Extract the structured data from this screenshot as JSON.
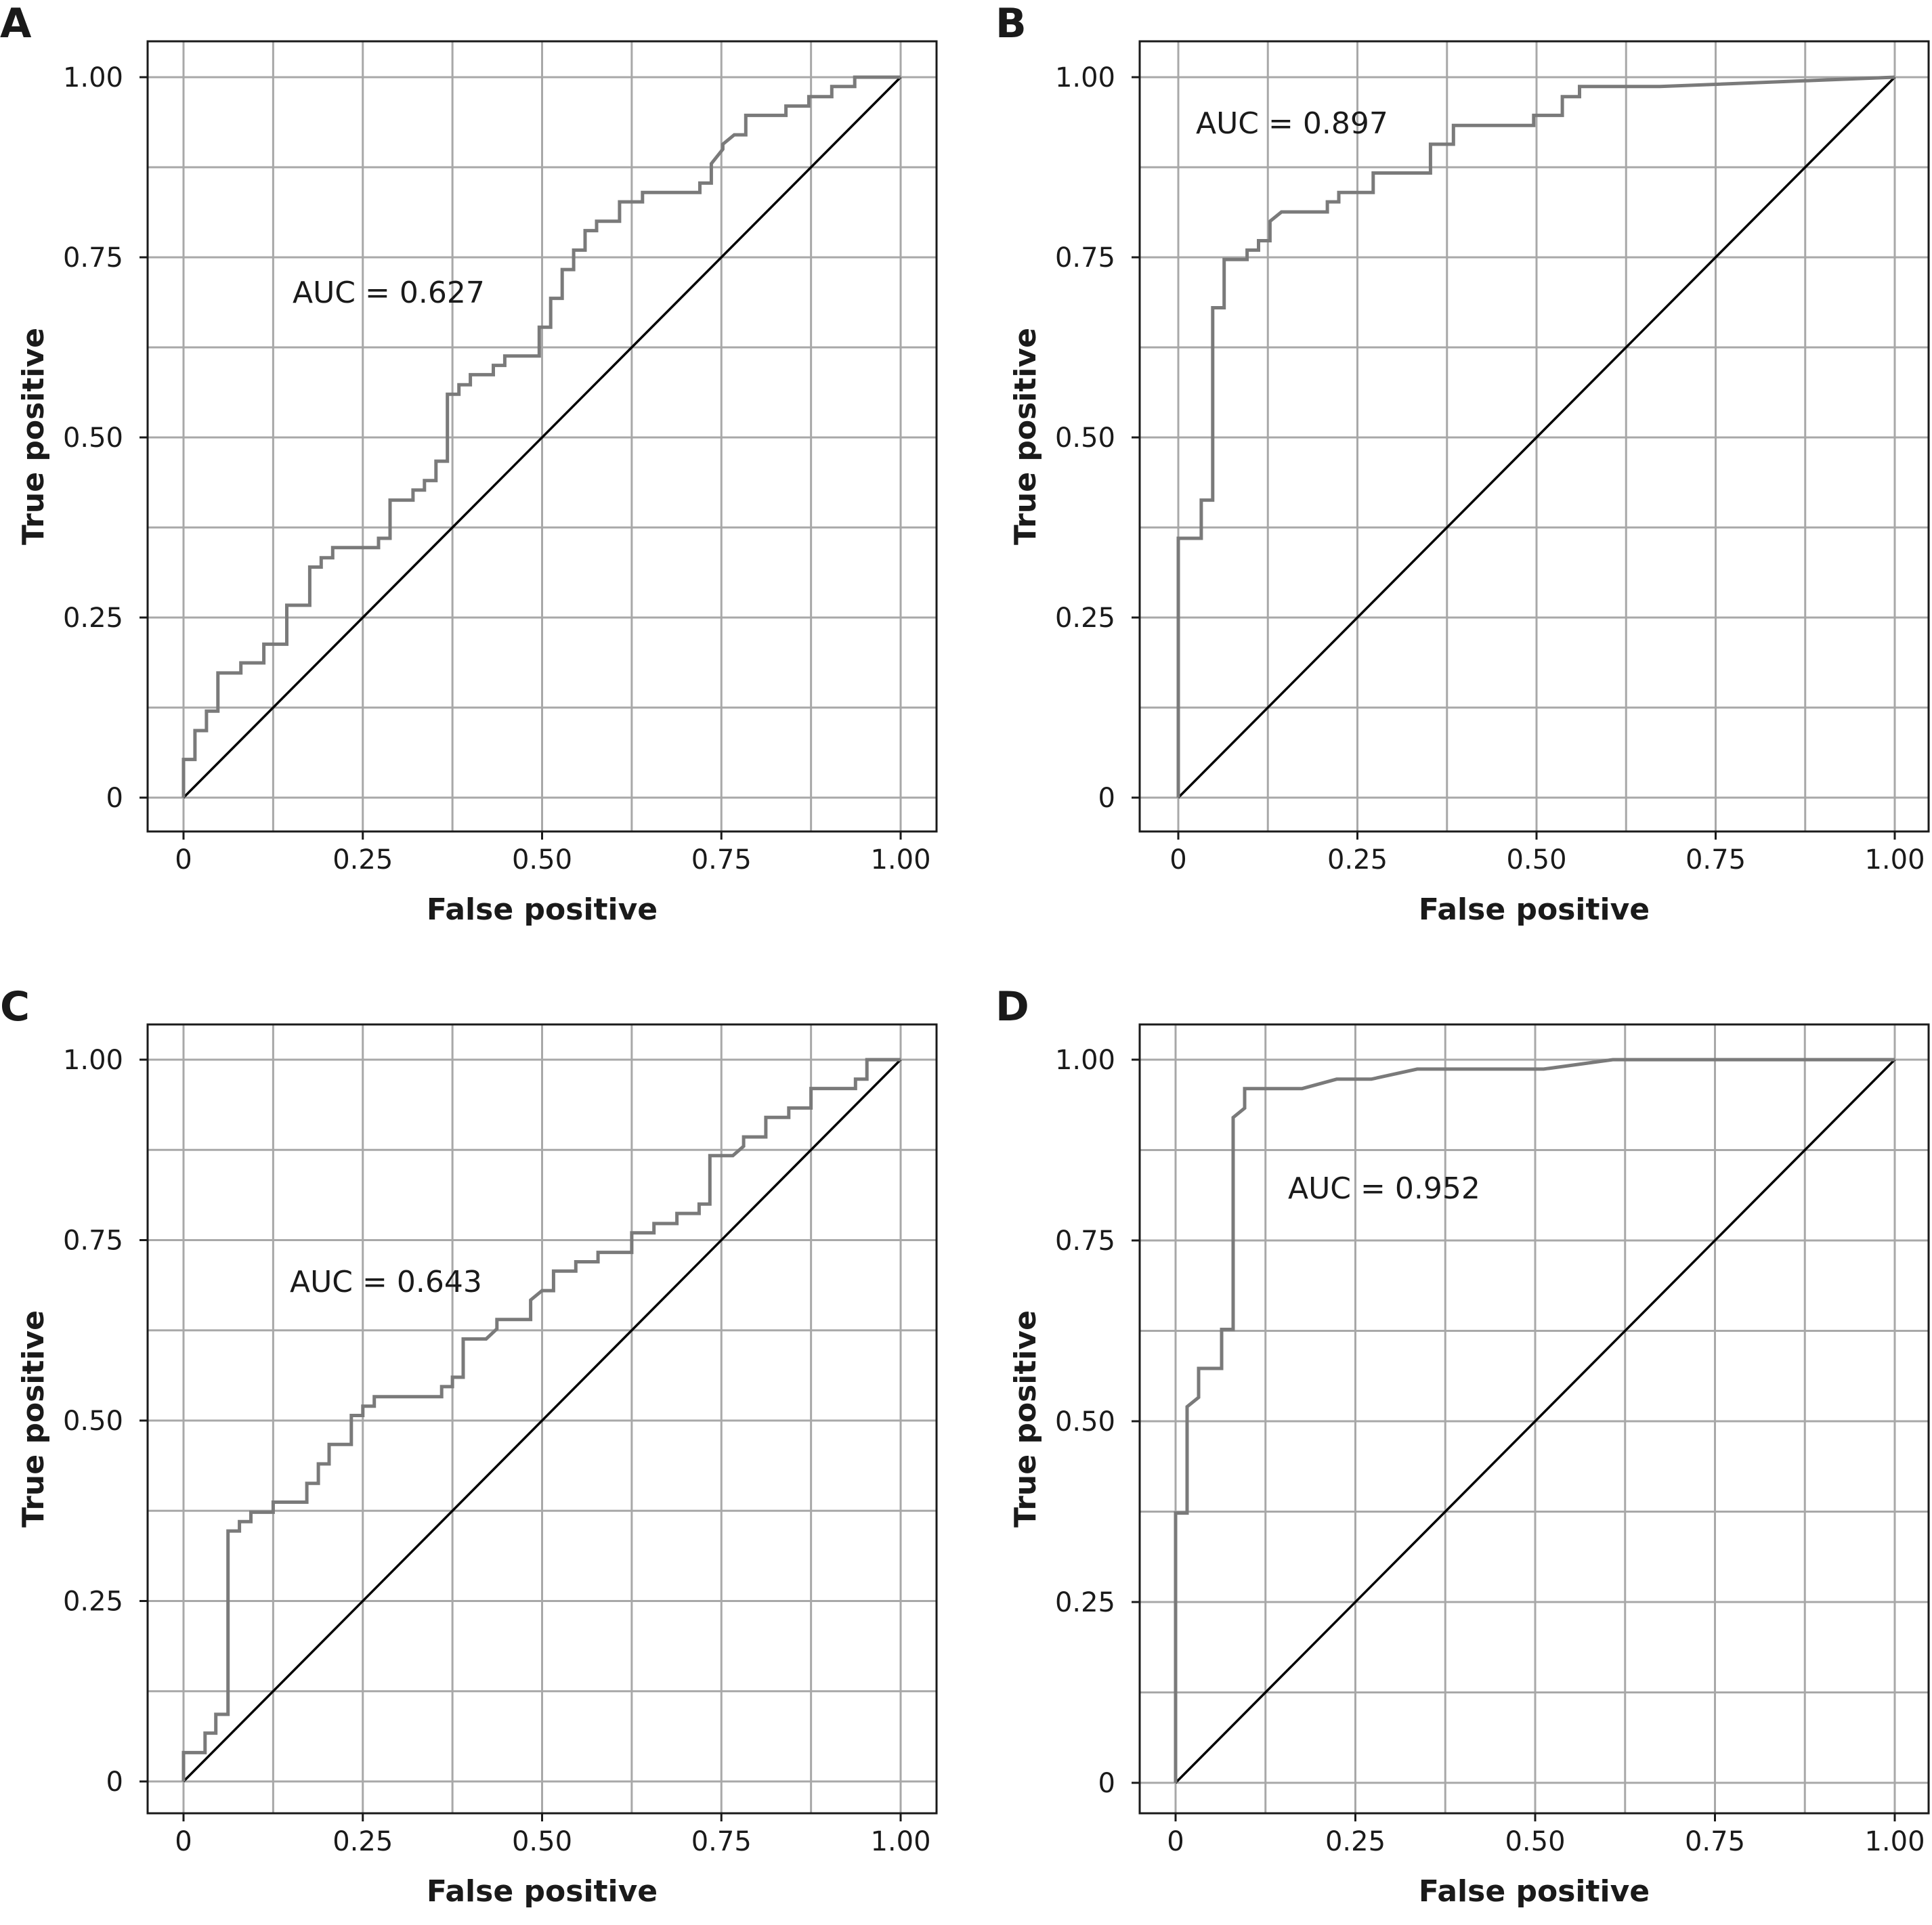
{
  "colors": {
    "roc_line": "#7a7a7a",
    "reference_line": "#000000",
    "grid": "#a8a8a8",
    "background": "#ffffff"
  },
  "chart_data": [
    {
      "panel": "A",
      "type": "line",
      "xlabel": "False positive",
      "ylabel": "True positive",
      "xlim": [
        0,
        1
      ],
      "ylim": [
        0,
        1
      ],
      "x_ticks": [
        0,
        0.25,
        0.5,
        0.75,
        1.0
      ],
      "x_tick_labels": [
        "0",
        "0.25",
        "0.50",
        "0.75",
        "1.00"
      ],
      "y_ticks": [
        0,
        0.25,
        0.5,
        0.75,
        1.0
      ],
      "y_tick_labels": [
        "0",
        "0.25",
        "0.50",
        "0.75",
        "1.00"
      ],
      "grid": true,
      "annotation": "AUC = 0.627",
      "reference_line": [
        [
          0,
          0
        ],
        [
          1,
          1
        ]
      ],
      "roc": [
        [
          0,
          0
        ],
        [
          0,
          0.053
        ],
        [
          0.016,
          0.053
        ],
        [
          0.016,
          0.093
        ],
        [
          0.032,
          0.093
        ],
        [
          0.032,
          0.12
        ],
        [
          0.048,
          0.12
        ],
        [
          0.048,
          0.173
        ],
        [
          0.08,
          0.173
        ],
        [
          0.08,
          0.187
        ],
        [
          0.112,
          0.187
        ],
        [
          0.112,
          0.213
        ],
        [
          0.144,
          0.213
        ],
        [
          0.144,
          0.267
        ],
        [
          0.176,
          0.267
        ],
        [
          0.176,
          0.32
        ],
        [
          0.192,
          0.32
        ],
        [
          0.192,
          0.333
        ],
        [
          0.208,
          0.333
        ],
        [
          0.208,
          0.347
        ],
        [
          0.272,
          0.347
        ],
        [
          0.272,
          0.36
        ],
        [
          0.288,
          0.36
        ],
        [
          0.288,
          0.413
        ],
        [
          0.32,
          0.413
        ],
        [
          0.32,
          0.427
        ],
        [
          0.336,
          0.427
        ],
        [
          0.336,
          0.44
        ],
        [
          0.352,
          0.44
        ],
        [
          0.352,
          0.467
        ],
        [
          0.368,
          0.467
        ],
        [
          0.368,
          0.56
        ],
        [
          0.384,
          0.56
        ],
        [
          0.384,
          0.573
        ],
        [
          0.4,
          0.573
        ],
        [
          0.4,
          0.587
        ],
        [
          0.432,
          0.587
        ],
        [
          0.432,
          0.6
        ],
        [
          0.448,
          0.6
        ],
        [
          0.448,
          0.613
        ],
        [
          0.496,
          0.613
        ],
        [
          0.496,
          0.653
        ],
        [
          0.512,
          0.653
        ],
        [
          0.512,
          0.693
        ],
        [
          0.528,
          0.693
        ],
        [
          0.528,
          0.733
        ],
        [
          0.544,
          0.733
        ],
        [
          0.544,
          0.76
        ],
        [
          0.56,
          0.76
        ],
        [
          0.56,
          0.787
        ],
        [
          0.576,
          0.787
        ],
        [
          0.576,
          0.8
        ],
        [
          0.608,
          0.8
        ],
        [
          0.608,
          0.827
        ],
        [
          0.64,
          0.827
        ],
        [
          0.64,
          0.84
        ],
        [
          0.72,
          0.84
        ],
        [
          0.72,
          0.853
        ],
        [
          0.736,
          0.853
        ],
        [
          0.736,
          0.88
        ],
        [
          0.752,
          0.9
        ],
        [
          0.752,
          0.907
        ],
        [
          0.768,
          0.92
        ],
        [
          0.784,
          0.92
        ],
        [
          0.784,
          0.947
        ],
        [
          0.84,
          0.947
        ],
        [
          0.84,
          0.96
        ],
        [
          0.872,
          0.96
        ],
        [
          0.872,
          0.973
        ],
        [
          0.904,
          0.973
        ],
        [
          0.904,
          0.987
        ],
        [
          0.936,
          0.987
        ],
        [
          0.936,
          1.0
        ],
        [
          1.0,
          1.0
        ]
      ]
    },
    {
      "panel": "B",
      "type": "line",
      "xlabel": "False positive",
      "ylabel": "True positive",
      "xlim": [
        0,
        1
      ],
      "ylim": [
        0,
        1
      ],
      "x_ticks": [
        0,
        0.25,
        0.5,
        0.75,
        1.0
      ],
      "x_tick_labels": [
        "0",
        "0.25",
        "0.50",
        "0.75",
        "1.00"
      ],
      "y_ticks": [
        0,
        0.25,
        0.5,
        0.75,
        1.0
      ],
      "y_tick_labels": [
        "0",
        "0.25",
        "0.50",
        "0.75",
        "1.00"
      ],
      "grid": true,
      "annotation": "AUC = 0.897",
      "reference_line": [
        [
          0,
          0
        ],
        [
          1,
          1
        ]
      ],
      "roc": [
        [
          0,
          0
        ],
        [
          0,
          0.36
        ],
        [
          0.032,
          0.36
        ],
        [
          0.032,
          0.413
        ],
        [
          0.048,
          0.413
        ],
        [
          0.048,
          0.68
        ],
        [
          0.064,
          0.68
        ],
        [
          0.064,
          0.747
        ],
        [
          0.096,
          0.747
        ],
        [
          0.096,
          0.76
        ],
        [
          0.112,
          0.76
        ],
        [
          0.112,
          0.773
        ],
        [
          0.128,
          0.773
        ],
        [
          0.128,
          0.8
        ],
        [
          0.144,
          0.813
        ],
        [
          0.208,
          0.813
        ],
        [
          0.208,
          0.827
        ],
        [
          0.224,
          0.827
        ],
        [
          0.224,
          0.84
        ],
        [
          0.272,
          0.84
        ],
        [
          0.272,
          0.867
        ],
        [
          0.352,
          0.867
        ],
        [
          0.352,
          0.907
        ],
        [
          0.384,
          0.907
        ],
        [
          0.384,
          0.933
        ],
        [
          0.496,
          0.933
        ],
        [
          0.496,
          0.947
        ],
        [
          0.536,
          0.947
        ],
        [
          0.536,
          0.973
        ],
        [
          0.56,
          0.973
        ],
        [
          0.56,
          0.987
        ],
        [
          0.672,
          0.987
        ],
        [
          1.0,
          1.0
        ]
      ]
    },
    {
      "panel": "C",
      "type": "line",
      "xlabel": "False positive",
      "ylabel": "True positive",
      "xlim": [
        0,
        1
      ],
      "ylim": [
        0,
        1
      ],
      "x_ticks": [
        0,
        0.25,
        0.5,
        0.75,
        1.0
      ],
      "x_tick_labels": [
        "0",
        "0.25",
        "0.50",
        "0.75",
        "1.00"
      ],
      "y_ticks": [
        0,
        0.25,
        0.5,
        0.75,
        1.0
      ],
      "y_tick_labels": [
        "0",
        "0.25",
        "0.50",
        "0.75",
        "1.00"
      ],
      "grid": true,
      "annotation": "AUC = 0.643",
      "reference_line": [
        [
          0,
          0
        ],
        [
          1,
          1
        ]
      ],
      "roc": [
        [
          0,
          0
        ],
        [
          0,
          0.04
        ],
        [
          0.03,
          0.04
        ],
        [
          0.03,
          0.067
        ],
        [
          0.045,
          0.067
        ],
        [
          0.045,
          0.093
        ],
        [
          0.062,
          0.093
        ],
        [
          0.062,
          0.347
        ],
        [
          0.078,
          0.347
        ],
        [
          0.078,
          0.36
        ],
        [
          0.094,
          0.36
        ],
        [
          0.094,
          0.373
        ],
        [
          0.125,
          0.373
        ],
        [
          0.125,
          0.387
        ],
        [
          0.172,
          0.387
        ],
        [
          0.172,
          0.413
        ],
        [
          0.188,
          0.413
        ],
        [
          0.188,
          0.44
        ],
        [
          0.203,
          0.44
        ],
        [
          0.203,
          0.467
        ],
        [
          0.234,
          0.467
        ],
        [
          0.234,
          0.507
        ],
        [
          0.25,
          0.507
        ],
        [
          0.25,
          0.52
        ],
        [
          0.266,
          0.52
        ],
        [
          0.266,
          0.533
        ],
        [
          0.36,
          0.533
        ],
        [
          0.36,
          0.547
        ],
        [
          0.375,
          0.547
        ],
        [
          0.375,
          0.56
        ],
        [
          0.39,
          0.56
        ],
        [
          0.39,
          0.613
        ],
        [
          0.422,
          0.613
        ],
        [
          0.437,
          0.627
        ],
        [
          0.437,
          0.64
        ],
        [
          0.484,
          0.64
        ],
        [
          0.484,
          0.667
        ],
        [
          0.5,
          0.68
        ],
        [
          0.516,
          0.68
        ],
        [
          0.516,
          0.707
        ],
        [
          0.547,
          0.707
        ],
        [
          0.547,
          0.72
        ],
        [
          0.578,
          0.72
        ],
        [
          0.578,
          0.733
        ],
        [
          0.625,
          0.733
        ],
        [
          0.625,
          0.76
        ],
        [
          0.656,
          0.76
        ],
        [
          0.656,
          0.773
        ],
        [
          0.688,
          0.773
        ],
        [
          0.688,
          0.787
        ],
        [
          0.719,
          0.787
        ],
        [
          0.719,
          0.8
        ],
        [
          0.734,
          0.8
        ],
        [
          0.734,
          0.867
        ],
        [
          0.766,
          0.867
        ],
        [
          0.781,
          0.88
        ],
        [
          0.781,
          0.893
        ],
        [
          0.812,
          0.893
        ],
        [
          0.812,
          0.92
        ],
        [
          0.844,
          0.92
        ],
        [
          0.844,
          0.933
        ],
        [
          0.875,
          0.933
        ],
        [
          0.875,
          0.96
        ],
        [
          0.937,
          0.96
        ],
        [
          0.937,
          0.973
        ],
        [
          0.953,
          0.973
        ],
        [
          0.953,
          1.0
        ],
        [
          1.0,
          1.0
        ]
      ]
    },
    {
      "panel": "D",
      "type": "line",
      "xlabel": "False positive",
      "ylabel": "True positive",
      "xlim": [
        0,
        1
      ],
      "ylim": [
        0,
        1
      ],
      "x_ticks": [
        0,
        0.25,
        0.5,
        0.75,
        1.0
      ],
      "x_tick_labels": [
        "0",
        "0.25",
        "0.50",
        "0.75",
        "1.00"
      ],
      "y_ticks": [
        0,
        0.25,
        0.5,
        0.75,
        1.0
      ],
      "y_tick_labels": [
        "0",
        "0.25",
        "0.50",
        "0.75",
        "1.00"
      ],
      "grid": true,
      "annotation": "AUC = 0.952",
      "reference_line": [
        [
          0,
          0
        ],
        [
          1,
          1
        ]
      ],
      "roc": [
        [
          0,
          0
        ],
        [
          0,
          0.373
        ],
        [
          0.016,
          0.373
        ],
        [
          0.016,
          0.52
        ],
        [
          0.032,
          0.533
        ],
        [
          0.032,
          0.573
        ],
        [
          0.064,
          0.573
        ],
        [
          0.064,
          0.627
        ],
        [
          0.08,
          0.627
        ],
        [
          0.08,
          0.92
        ],
        [
          0.096,
          0.933
        ],
        [
          0.096,
          0.96
        ],
        [
          0.176,
          0.96
        ],
        [
          0.224,
          0.973
        ],
        [
          0.272,
          0.973
        ],
        [
          0.336,
          0.987
        ],
        [
          0.512,
          0.987
        ],
        [
          0.608,
          1.0
        ],
        [
          1.0,
          1.0
        ]
      ]
    }
  ]
}
